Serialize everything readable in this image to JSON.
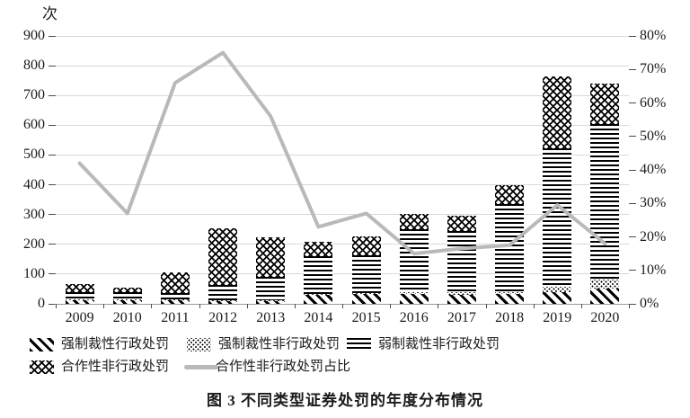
{
  "title": "图 3  不同类型证券处罚的年度分布情况",
  "y_axis_unit": "次",
  "chart_data": {
    "type": "bar",
    "subtype": "stacked-bar-with-line",
    "title": "图 3  不同类型证券处罚的年度分布情况",
    "categories": [
      "2009",
      "2010",
      "2011",
      "2012",
      "2013",
      "2014",
      "2015",
      "2016",
      "2017",
      "2018",
      "2019",
      "2020"
    ],
    "series": [
      {
        "name": "强制裁性行政处罚",
        "kind": "bar",
        "pattern": "diagonal",
        "values": [
          13,
          12,
          12,
          10,
          10,
          30,
          32,
          34,
          30,
          34,
          40,
          50
        ]
      },
      {
        "name": "强制裁性非行政处罚",
        "kind": "bar",
        "pattern": "dots",
        "values": [
          2,
          2,
          2,
          3,
          2,
          3,
          3,
          6,
          9,
          5,
          18,
          32
        ]
      },
      {
        "name": "弱制裁性非行政处罚",
        "kind": "bar",
        "pattern": "hlines",
        "values": [
          23,
          26,
          21,
          50,
          80,
          126,
          127,
          210,
          206,
          296,
          465,
          522
        ]
      },
      {
        "name": "合作性非行政处罚",
        "kind": "bar",
        "pattern": "crosshatch",
        "values": [
          27,
          15,
          70,
          192,
          132,
          48,
          65,
          52,
          52,
          65,
          242,
          136
        ]
      },
      {
        "name": "合作性非行政处罚占比",
        "kind": "line",
        "axis": "right",
        "color": "#b9b9b9",
        "values": [
          42,
          27,
          66,
          75,
          56,
          23,
          27,
          15,
          16.5,
          17.5,
          29.5,
          18
        ]
      }
    ],
    "left_axis": {
      "label": "次",
      "min": 0,
      "max": 900,
      "step": 100,
      "ticks": [
        "0",
        "100",
        "200",
        "300",
        "400",
        "500",
        "600",
        "700",
        "800",
        "900"
      ]
    },
    "right_axis": {
      "min": 0,
      "max": 80,
      "step": 10,
      "suffix": "%",
      "ticks": [
        "0%",
        "10%",
        "20%",
        "30%",
        "40%",
        "50%",
        "60%",
        "70%",
        "80%"
      ]
    },
    "stacked": true,
    "grid": true,
    "legend_position": "bottom"
  },
  "colors": {
    "trend_line": "#b9b9b9",
    "gridline": "#d9d9d9",
    "text": "#1a1a1a"
  }
}
